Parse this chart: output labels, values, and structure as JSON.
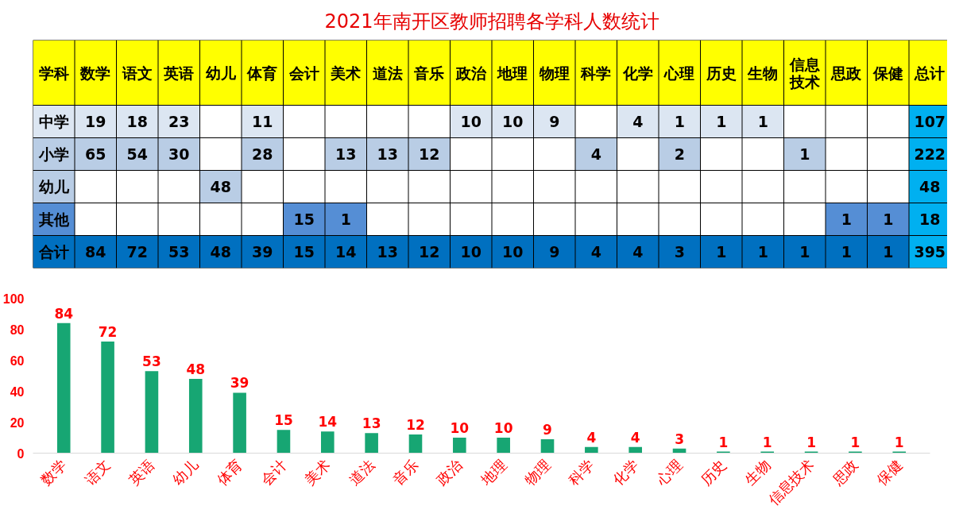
{
  "chart_data": [
    {
      "type": "heatmap",
      "title": "2021年南开区教师招聘各学科人数统计",
      "ylabel": "学科",
      "categories": [
        "数学",
        "语文",
        "英语",
        "幼儿",
        "体育",
        "会计",
        "美术",
        "道法",
        "音乐",
        "政治",
        "地理",
        "物理",
        "科学",
        "化学",
        "心理",
        "历史",
        "生物",
        "信息技术",
        "思政",
        "保健",
        "总计"
      ],
      "y_categories": [
        "中学",
        "小学",
        "幼儿",
        "其他",
        "合计"
      ],
      "cells": [
        [
          19,
          18,
          23,
          null,
          11,
          null,
          null,
          null,
          null,
          10,
          10,
          9,
          null,
          4,
          1,
          1,
          1,
          null,
          null,
          null,
          107
        ],
        [
          65,
          54,
          30,
          null,
          28,
          null,
          13,
          13,
          12,
          null,
          null,
          null,
          4,
          null,
          2,
          null,
          null,
          1,
          null,
          null,
          222
        ],
        [
          null,
          null,
          null,
          48,
          null,
          null,
          null,
          null,
          null,
          null,
          null,
          null,
          null,
          null,
          null,
          null,
          null,
          null,
          null,
          null,
          48
        ],
        [
          null,
          null,
          null,
          null,
          null,
          15,
          1,
          null,
          null,
          null,
          null,
          null,
          null,
          null,
          null,
          null,
          null,
          null,
          1,
          1,
          18
        ],
        [
          84,
          72,
          53,
          48,
          39,
          15,
          14,
          13,
          12,
          10,
          10,
          9,
          4,
          4,
          3,
          1,
          1,
          1,
          1,
          1,
          395
        ]
      ],
      "cell_labels": [
        [
          "19",
          "18",
          "23",
          null,
          "11",
          null,
          null,
          null,
          null,
          "10",
          "10",
          "9",
          null,
          "4",
          "1",
          "1",
          "1",
          null,
          null,
          null,
          "107"
        ],
        [
          "65",
          "54",
          "30",
          null,
          "28",
          null,
          "13",
          "13",
          "12",
          null,
          null,
          null,
          "4",
          null,
          "2",
          null,
          null,
          "1",
          null,
          null,
          "222"
        ],
        [
          null,
          null,
          null,
          "48",
          null,
          null,
          null,
          null,
          null,
          null,
          null,
          null,
          null,
          null,
          null,
          null,
          null,
          null,
          null,
          null,
          "48"
        ],
        [
          null,
          null,
          null,
          null,
          null,
          "15",
          "1",
          null,
          null,
          null,
          null,
          null,
          null,
          null,
          null,
          null,
          null,
          null,
          "1",
          "1",
          "18"
        ],
        [
          "84",
          "72",
          "53",
          "48",
          "39",
          "15",
          "14",
          "13",
          "12",
          "10",
          "10",
          "9",
          "4",
          "4",
          "3",
          "1",
          "1",
          "1",
          "1",
          "1",
          "395"
        ]
      ]
    },
    {
      "type": "bar",
      "categories": [
        "数学",
        "语文",
        "英语",
        "幼儿",
        "体育",
        "会计",
        "美术",
        "道法",
        "音乐",
        "政治",
        "地理",
        "物理",
        "科学",
        "化学",
        "心理",
        "历史",
        "生物",
        "信息技术",
        "思政",
        "保健"
      ],
      "values": [
        84,
        72,
        53,
        48,
        39,
        15,
        14,
        13,
        12,
        10,
        10,
        9,
        4,
        4,
        3,
        1,
        1,
        1,
        1,
        1
      ],
      "color": "#17a673",
      "data_labels": true,
      "grid": false,
      "ylim": [
        0,
        100
      ],
      "yticks": [
        0,
        20,
        40,
        60,
        80,
        100
      ]
    }
  ]
}
